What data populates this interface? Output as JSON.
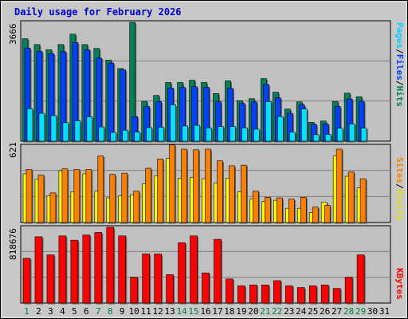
{
  "title": "Daily usage for February 2026",
  "colors": {
    "hits": "#00805c",
    "files": "#0040ff",
    "pages": "#00e0ff",
    "visits": "#ffff00",
    "sites": "#ff8000",
    "kbytes": "#ff0000",
    "weekday_label": "#000000",
    "weekend_label": "#008040",
    "panel_bg": "#c0c0c0",
    "title": "#0000cc"
  },
  "chart_data": [
    {
      "type": "bar",
      "panel": "hits-files-pages",
      "ymax_label": "3666",
      "ylim": [
        0,
        3666
      ],
      "legend": [
        "Pages",
        "Files",
        "Hits"
      ],
      "categories": [
        "1",
        "2",
        "3",
        "4",
        "5",
        "6",
        "7",
        "8",
        "9",
        "10",
        "11",
        "12",
        "13",
        "14",
        "15",
        "16",
        "17",
        "18",
        "19",
        "20",
        "21",
        "22",
        "23",
        "24",
        "25",
        "26",
        "27",
        "28",
        "29",
        "30",
        "31"
      ],
      "series": [
        {
          "name": "Hits",
          "values": [
            3160,
            2980,
            2820,
            2980,
            3300,
            2980,
            2860,
            2500,
            2240,
            3666,
            1230,
            1410,
            1810,
            1810,
            1880,
            1810,
            1470,
            1860,
            1250,
            1310,
            1930,
            1510,
            990,
            1210,
            580,
            620,
            1220,
            1480,
            1370,
            null,
            null
          ]
        },
        {
          "name": "Files",
          "values": [
            2870,
            2770,
            2700,
            2760,
            3040,
            2820,
            2560,
            2410,
            2200,
            760,
            1070,
            1220,
            1640,
            1660,
            1680,
            1660,
            1220,
            1630,
            1160,
            1210,
            1750,
            1340,
            860,
            1120,
            520,
            530,
            1070,
            1300,
            1230,
            null,
            null
          ]
        },
        {
          "name": "Pages",
          "values": [
            1000,
            860,
            790,
            570,
            630,
            750,
            440,
            270,
            340,
            280,
            420,
            430,
            1120,
            470,
            490,
            410,
            450,
            450,
            410,
            370,
            1220,
            760,
            280,
            990,
            200,
            210,
            400,
            530,
            400,
            null,
            null
          ]
        }
      ]
    },
    {
      "type": "bar",
      "panel": "visits-sites",
      "ymax_label": "621",
      "ylim": [
        0,
        621
      ],
      "legend": [
        "Sites",
        "Visits"
      ],
      "categories": [
        "1",
        "2",
        "3",
        "4",
        "5",
        "6",
        "7",
        "8",
        "9",
        "10",
        "11",
        "12",
        "13",
        "14",
        "15",
        "16",
        "17",
        "18",
        "19",
        "20",
        "21",
        "22",
        "23",
        "24",
        "25",
        "26",
        "27",
        "28",
        "29",
        "30",
        "31"
      ],
      "series": [
        {
          "name": "Visits",
          "values": [
            395,
            350,
            215,
            420,
            250,
            395,
            255,
            200,
            215,
            225,
            315,
            380,
            520,
            360,
            365,
            355,
            320,
            360,
            250,
            190,
            170,
            180,
            115,
            115,
            80,
            165,
            540,
            375,
            280,
            null,
            null
          ]
        },
        {
          "name": "Sites",
          "values": [
            430,
            385,
            240,
            435,
            430,
            430,
            540,
            390,
            400,
            255,
            440,
            515,
            630,
            595,
            590,
            595,
            500,
            460,
            465,
            255,
            205,
            200,
            190,
            205,
            125,
            140,
            595,
            410,
            355,
            null,
            null
          ]
        }
      ]
    },
    {
      "type": "bar",
      "panel": "kbytes",
      "ymax_label": "818676",
      "ylim": [
        0,
        818676
      ],
      "legend": [
        "KBytes"
      ],
      "categories": [
        "1",
        "2",
        "3",
        "4",
        "5",
        "6",
        "7",
        "8",
        "9",
        "10",
        "11",
        "12",
        "13",
        "14",
        "15",
        "16",
        "17",
        "18",
        "19",
        "20",
        "21",
        "22",
        "23",
        "24",
        "25",
        "26",
        "27",
        "28",
        "29",
        "30",
        "31"
      ],
      "series": [
        {
          "name": "KBytes",
          "values": [
            520,
            770,
            560,
            780,
            730,
            790,
            820,
            880,
            780,
            300,
            570,
            570,
            330,
            700,
            780,
            350,
            740,
            280,
            200,
            210,
            210,
            260,
            200,
            180,
            200,
            210,
            170,
            300,
            560,
            null,
            null
          ]
        }
      ]
    }
  ],
  "x_labels": [
    {
      "text": "1",
      "weekend": true
    },
    {
      "text": "2",
      "weekend": false
    },
    {
      "text": "3",
      "weekend": false
    },
    {
      "text": "4",
      "weekend": false
    },
    {
      "text": "5",
      "weekend": false
    },
    {
      "text": "6",
      "weekend": false
    },
    {
      "text": "7",
      "weekend": true
    },
    {
      "text": "8",
      "weekend": true
    },
    {
      "text": "9",
      "weekend": false
    },
    {
      "text": "10",
      "weekend": false
    },
    {
      "text": "11",
      "weekend": false
    },
    {
      "text": "12",
      "weekend": false
    },
    {
      "text": "13",
      "weekend": false
    },
    {
      "text": "14",
      "weekend": true
    },
    {
      "text": "15",
      "weekend": true
    },
    {
      "text": "16",
      "weekend": false
    },
    {
      "text": "17",
      "weekend": false
    },
    {
      "text": "18",
      "weekend": false
    },
    {
      "text": "19",
      "weekend": false
    },
    {
      "text": "20",
      "weekend": false
    },
    {
      "text": "21",
      "weekend": true
    },
    {
      "text": "22",
      "weekend": true
    },
    {
      "text": "23",
      "weekend": false
    },
    {
      "text": "24",
      "weekend": false
    },
    {
      "text": "25",
      "weekend": false
    },
    {
      "text": "26",
      "weekend": false
    },
    {
      "text": "27",
      "weekend": false
    },
    {
      "text": "28",
      "weekend": true
    },
    {
      "text": "29",
      "weekend": true
    },
    {
      "text": "30",
      "weekend": false
    },
    {
      "text": "31",
      "weekend": false
    }
  ],
  "right_labels": {
    "panel1": [
      {
        "text": "Pages",
        "color": "#00d0ff"
      },
      {
        "text": "/",
        "color": "#000000"
      },
      {
        "text": "Files",
        "color": "#0040ff"
      },
      {
        "text": "/",
        "color": "#000000"
      },
      {
        "text": "Hits",
        "color": "#00805c"
      }
    ],
    "panel2": [
      {
        "text": "Sites",
        "color": "#ff8000"
      },
      {
        "text": "/",
        "color": "#000000"
      },
      {
        "text": "Visits",
        "color": "#e0e000"
      }
    ],
    "panel3": [
      {
        "text": "KBytes",
        "color": "#ff0000"
      }
    ]
  }
}
